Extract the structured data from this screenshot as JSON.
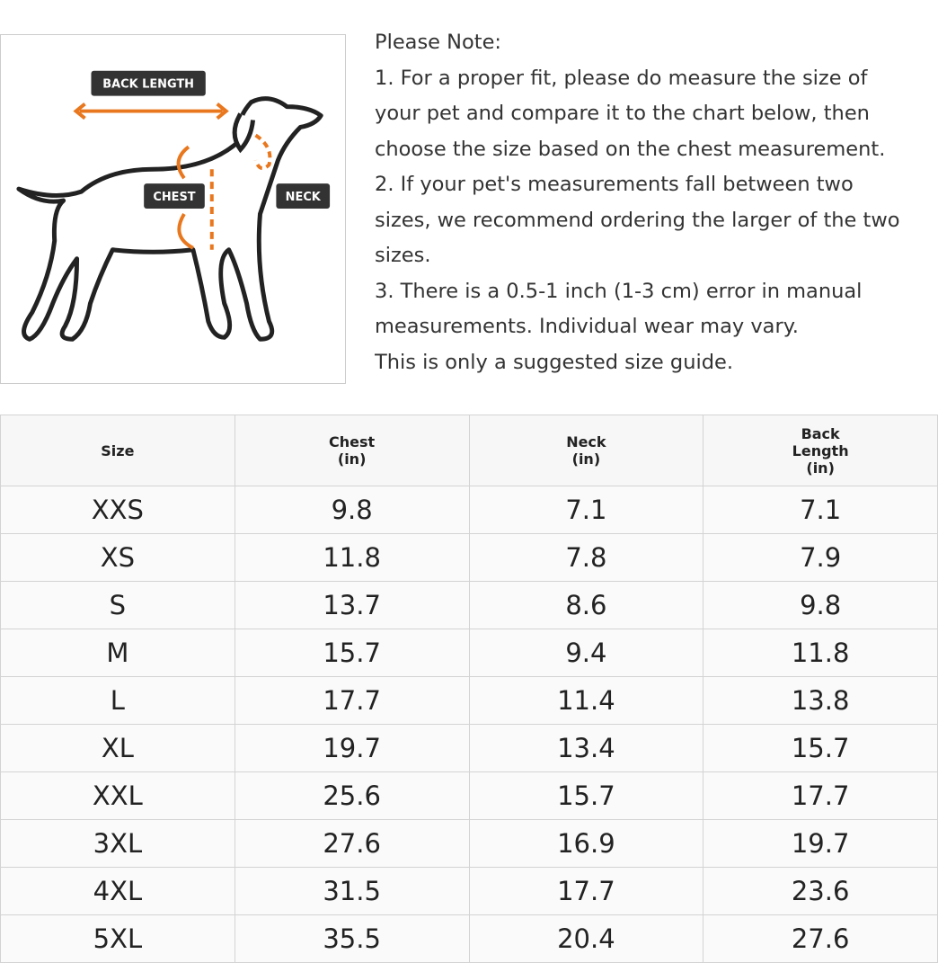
{
  "diagram": {
    "labels": {
      "back_length": "BACK LENGTH",
      "chest": "CHEST",
      "neck": "NECK"
    }
  },
  "note": {
    "title": "Please Note:",
    "lines": [
      "1. For a proper fit, please do measure the size of",
      "your pet and compare it to the chart below, then",
      "choose the size based on the chest measurement.",
      "2. If your pet's measurements fall between two",
      "sizes, we recommend ordering the larger of the two",
      "sizes.",
      "3. There is a 0.5-1 inch (1-3 cm) error in manual",
      "measurements. Individual wear may vary.",
      "This is only a suggested size guide."
    ]
  },
  "table": {
    "header": [
      "Size",
      "Chest (in)",
      "Neck (in)",
      "Back Length (in)"
    ],
    "rows": [
      [
        "XXS",
        "9.8",
        "7.1",
        "7.1"
      ],
      [
        "XS",
        "11.8",
        "7.8",
        "7.9"
      ],
      [
        "S",
        "13.7",
        "8.6",
        "9.8"
      ],
      [
        "M",
        "15.7",
        "9.4",
        "11.8"
      ],
      [
        "L",
        "17.7",
        "11.4",
        "13.8"
      ],
      [
        "XL",
        "19.7",
        "13.4",
        "15.7"
      ],
      [
        "XXL",
        "25.6",
        "15.7",
        "17.7"
      ],
      [
        "3XL",
        "27.6",
        "16.9",
        "19.7"
      ],
      [
        "4XL",
        "31.5",
        "17.7",
        "23.6"
      ],
      [
        "5XL",
        "35.5",
        "20.4",
        "27.6"
      ]
    ]
  }
}
